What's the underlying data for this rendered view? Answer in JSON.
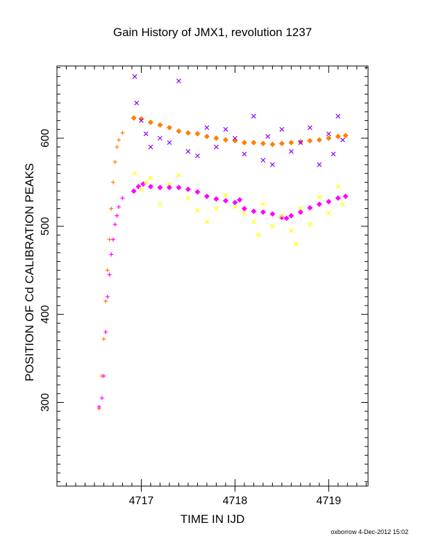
{
  "chart_data": {
    "type": "scatter",
    "title": "Gain History of JMX1, revolution 1237",
    "xlabel": "TIME IN IJD",
    "ylabel": "POSITION OF Cd CALIBRATION PEAKS",
    "xlim": [
      4716.1,
      4719.42
    ],
    "ylim": [
      205,
      682
    ],
    "x_ticks": [
      4717,
      4718,
      4719
    ],
    "x_tick_labels": [
      "4717",
      "4718",
      "4719"
    ],
    "y_ticks": [
      300,
      400,
      500,
      600
    ],
    "y_tick_labels": [
      "300",
      "400",
      "500",
      "600"
    ],
    "grid": false,
    "legend": "none",
    "credit": "oxborrow 4-Dec-2012 15:02",
    "series": [
      {
        "color": "#ff8000",
        "marker": "plus",
        "points": [
          [
            4716.55,
            293
          ],
          [
            4716.58,
            330
          ],
          [
            4716.6,
            372
          ],
          [
            4716.62,
            415
          ],
          [
            4716.64,
            450
          ],
          [
            4716.66,
            485
          ],
          [
            4716.68,
            520
          ],
          [
            4716.7,
            550
          ],
          [
            4716.72,
            573
          ],
          [
            4716.74,
            590
          ],
          [
            4716.76,
            598
          ],
          [
            4716.8,
            606
          ]
        ]
      },
      {
        "color": "#ff00ff",
        "marker": "plus",
        "points": [
          [
            4716.55,
            295
          ],
          [
            4716.58,
            305
          ],
          [
            4716.6,
            330
          ],
          [
            4716.62,
            380
          ],
          [
            4716.64,
            420
          ],
          [
            4716.66,
            445
          ],
          [
            4716.68,
            468
          ],
          [
            4716.7,
            485
          ],
          [
            4716.72,
            502
          ],
          [
            4716.74,
            512
          ],
          [
            4716.76,
            522
          ],
          [
            4716.8,
            532
          ]
        ]
      },
      {
        "color": "#ff8000",
        "marker": "diamond",
        "points": [
          [
            4716.92,
            623
          ],
          [
            4717.0,
            622
          ],
          [
            4717.1,
            618
          ],
          [
            4717.2,
            615
          ],
          [
            4717.3,
            612
          ],
          [
            4717.4,
            608
          ],
          [
            4717.5,
            606
          ],
          [
            4717.6,
            605
          ],
          [
            4717.7,
            602
          ],
          [
            4717.8,
            600
          ],
          [
            4717.9,
            598
          ],
          [
            4718.0,
            597
          ],
          [
            4718.1,
            595
          ],
          [
            4718.2,
            595
          ],
          [
            4718.3,
            594
          ],
          [
            4718.4,
            593
          ],
          [
            4718.5,
            594
          ],
          [
            4718.6,
            595
          ],
          [
            4718.7,
            596
          ],
          [
            4718.8,
            597
          ],
          [
            4718.9,
            598
          ],
          [
            4719.0,
            600
          ],
          [
            4719.1,
            602
          ],
          [
            4719.18,
            603
          ]
        ]
      },
      {
        "color": "#ff00ff",
        "marker": "diamond",
        "points": [
          [
            4716.92,
            540
          ],
          [
            4716.97,
            545
          ],
          [
            4717.02,
            548
          ],
          [
            4717.1,
            545
          ],
          [
            4717.2,
            544
          ],
          [
            4717.3,
            544
          ],
          [
            4717.4,
            544
          ],
          [
            4717.5,
            542
          ],
          [
            4717.6,
            539
          ],
          [
            4717.7,
            534
          ],
          [
            4717.8,
            531
          ],
          [
            4717.9,
            529
          ],
          [
            4718.0,
            527
          ],
          [
            4718.05,
            530
          ],
          [
            4718.1,
            520
          ],
          [
            4718.2,
            517
          ],
          [
            4718.3,
            516
          ],
          [
            4718.4,
            514
          ],
          [
            4718.5,
            510
          ],
          [
            4718.55,
            509
          ],
          [
            4718.6,
            512
          ],
          [
            4718.7,
            516
          ],
          [
            4718.8,
            521
          ],
          [
            4718.9,
            525
          ],
          [
            4719.0,
            528
          ],
          [
            4719.1,
            532
          ],
          [
            4719.18,
            534
          ]
        ]
      },
      {
        "color": "#8b00ff",
        "marker": "x",
        "points": [
          [
            4716.93,
            670
          ],
          [
            4716.95,
            640
          ],
          [
            4717.0,
            620
          ],
          [
            4717.05,
            605
          ],
          [
            4717.1,
            590
          ],
          [
            4717.2,
            600
          ],
          [
            4717.3,
            595
          ],
          [
            4717.4,
            665
          ],
          [
            4717.5,
            585
          ],
          [
            4717.6,
            580
          ],
          [
            4717.7,
            612
          ],
          [
            4717.8,
            590
          ],
          [
            4717.9,
            610
          ],
          [
            4718.0,
            600
          ],
          [
            4718.1,
            582
          ],
          [
            4718.2,
            625
          ],
          [
            4718.3,
            575
          ],
          [
            4718.35,
            602
          ],
          [
            4718.4,
            570
          ],
          [
            4718.5,
            610
          ],
          [
            4718.6,
            585
          ],
          [
            4718.7,
            595
          ],
          [
            4718.8,
            612
          ],
          [
            4718.9,
            570
          ],
          [
            4719.0,
            605
          ],
          [
            4719.05,
            582
          ],
          [
            4719.1,
            625
          ],
          [
            4719.15,
            598
          ]
        ]
      },
      {
        "color": "#ffff00",
        "marker": "x",
        "points": [
          [
            4716.93,
            560
          ],
          [
            4717.0,
            542
          ],
          [
            4717.05,
            550
          ],
          [
            4717.1,
            555
          ],
          [
            4717.2,
            525
          ],
          [
            4717.3,
            548
          ],
          [
            4717.4,
            558
          ],
          [
            4717.5,
            532
          ],
          [
            4717.6,
            518
          ],
          [
            4717.7,
            505
          ],
          [
            4717.8,
            520
          ],
          [
            4717.9,
            535
          ],
          [
            4718.0,
            522
          ],
          [
            4718.1,
            515
          ],
          [
            4718.2,
            505
          ],
          [
            4718.25,
            490
          ],
          [
            4718.3,
            525
          ],
          [
            4718.4,
            500
          ],
          [
            4718.5,
            512
          ],
          [
            4718.6,
            495
          ],
          [
            4718.65,
            480
          ],
          [
            4718.7,
            520
          ],
          [
            4718.8,
            502
          ],
          [
            4718.9,
            533
          ],
          [
            4719.0,
            515
          ],
          [
            4719.1,
            545
          ],
          [
            4719.15,
            525
          ]
        ]
      }
    ]
  }
}
